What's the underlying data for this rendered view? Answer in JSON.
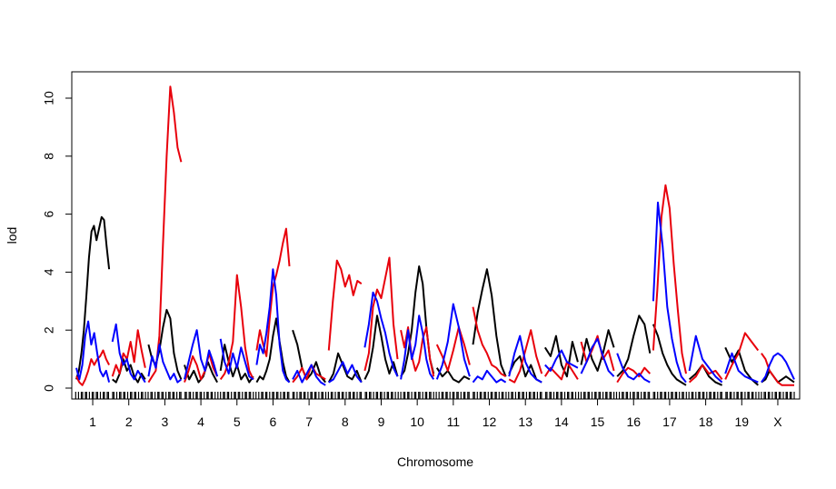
{
  "chart_data": {
    "type": "line",
    "title": "",
    "xlabel": "Chromosome",
    "ylabel": "lod",
    "ylim": [
      0,
      10.8
    ],
    "yticks": [
      0,
      2,
      4,
      6,
      8,
      10
    ],
    "series_colors": [
      "#000000",
      "#e8000b",
      "#0000ff"
    ],
    "chromosomes": [
      {
        "label": "1",
        "black": [
          0.3,
          0.6,
          1.2,
          2.0,
          3.2,
          4.5,
          5.4,
          5.6,
          5.1,
          5.5,
          5.9,
          5.8,
          4.9,
          4.1
        ],
        "red": [
          0.4,
          0.2,
          0.1,
          0.3,
          0.6,
          1.0,
          0.8,
          1.0,
          1.1,
          1.3,
          1.0,
          0.8
        ],
        "blue": [
          0.7,
          0.3,
          0.8,
          1.8,
          2.3,
          1.5,
          1.9,
          1.2,
          0.6,
          0.4,
          0.6,
          0.2
        ]
      },
      {
        "label": "2",
        "black": [
          0.3,
          0.2,
          0.5,
          1.0,
          0.6,
          0.8,
          0.4,
          0.2,
          0.5,
          0.3
        ],
        "red": [
          0.4,
          0.8,
          0.5,
          1.2,
          1.0,
          1.6,
          0.9,
          2.0,
          1.3,
          0.7
        ],
        "blue": [
          1.6,
          2.2,
          1.2,
          0.8,
          1.0,
          0.5,
          0.3,
          0.6,
          0.4,
          0.2
        ]
      },
      {
        "label": "3",
        "black": [
          1.5,
          1.0,
          0.8,
          1.3,
          2.1,
          2.7,
          2.4,
          1.2,
          0.6,
          0.3
        ],
        "red": [
          0.2,
          0.4,
          0.6,
          1.8,
          5.0,
          8.0,
          10.4,
          9.5,
          8.3,
          7.8
        ],
        "blue": [
          0.4,
          1.1,
          0.7,
          1.5,
          0.9,
          0.6,
          0.3,
          0.5,
          0.2,
          0.3
        ]
      },
      {
        "label": "4",
        "black": [
          0.8,
          0.3,
          0.6,
          0.2,
          0.4,
          0.9,
          0.5,
          0.2
        ],
        "red": [
          0.2,
          0.6,
          1.1,
          0.8,
          0.3,
          0.6,
          1.2,
          0.7,
          0.4
        ],
        "blue": [
          0.3,
          0.9,
          1.5,
          2.0,
          1.0,
          0.6,
          1.3,
          0.9,
          0.4
        ]
      },
      {
        "label": "5",
        "black": [
          0.6,
          1.5,
          0.9,
          0.4,
          0.8,
          0.3,
          0.5,
          0.2,
          0.4
        ],
        "red": [
          0.3,
          0.5,
          0.9,
          1.6,
          3.9,
          2.8,
          1.4,
          0.6,
          0.3
        ],
        "blue": [
          1.7,
          0.9,
          0.5,
          1.2,
          0.7,
          1.4,
          0.9,
          0.4,
          0.3
        ]
      },
      {
        "label": "6",
        "black": [
          0.2,
          0.4,
          0.3,
          0.6,
          1.0,
          1.8,
          2.4,
          1.6,
          0.9,
          0.4,
          0.2
        ],
        "red": [
          1.3,
          2.0,
          1.5,
          1.1,
          2.4,
          3.5,
          3.9,
          4.4,
          5.0,
          5.5,
          4.2
        ],
        "blue": [
          0.8,
          1.5,
          1.2,
          1.9,
          2.8,
          4.1,
          3.2,
          1.5,
          0.6,
          0.3,
          0.2
        ]
      },
      {
        "label": "7",
        "black": [
          2.0,
          1.5,
          0.7,
          0.3,
          0.5,
          0.9,
          0.4,
          0.2
        ],
        "red": [
          0.2,
          0.4,
          0.7,
          0.3,
          0.8,
          0.5,
          0.4,
          0.3
        ],
        "blue": [
          0.3,
          0.6,
          0.2,
          0.5,
          0.8,
          0.4,
          0.2,
          0.1
        ]
      },
      {
        "label": "8",
        "black": [
          0.2,
          0.5,
          1.2,
          0.8,
          0.4,
          0.3,
          0.6,
          0.2
        ],
        "red": [
          1.3,
          3.0,
          4.4,
          4.1,
          3.5,
          3.9,
          3.2,
          3.7,
          3.6
        ],
        "blue": [
          0.2,
          0.3,
          0.6,
          0.9,
          0.5,
          0.8,
          0.4,
          0.2
        ]
      },
      {
        "label": "9",
        "black": [
          0.3,
          0.6,
          1.4,
          2.5,
          1.8,
          1.0,
          0.5,
          0.9,
          0.4
        ],
        "red": [
          0.6,
          1.2,
          2.8,
          3.4,
          3.1,
          3.8,
          4.5,
          2.2,
          1.0
        ],
        "blue": [
          1.4,
          2.2,
          3.3,
          3.0,
          2.4,
          1.9,
          1.2,
          0.7,
          0.4
        ]
      },
      {
        "label": "10",
        "black": [
          0.4,
          0.6,
          1.2,
          2.0,
          3.3,
          4.2,
          3.6,
          2.1,
          1.0,
          0.5
        ],
        "red": [
          2.0,
          1.4,
          2.1,
          1.1,
          0.6,
          0.9,
          1.7,
          2.1,
          1.0,
          0.4
        ],
        "blue": [
          0.3,
          1.0,
          2.0,
          1.0,
          1.5,
          2.5,
          1.9,
          1.0,
          0.5,
          0.3
        ]
      },
      {
        "label": "11",
        "black": [
          0.7,
          0.4,
          0.6,
          0.3,
          0.2,
          0.4,
          0.3
        ],
        "red": [
          1.5,
          1.1,
          0.6,
          1.3,
          2.1,
          1.5,
          0.8
        ],
        "blue": [
          0.3,
          0.8,
          1.6,
          2.9,
          2.1,
          1.0,
          0.4
        ]
      },
      {
        "label": "12",
        "black": [
          1.5,
          2.6,
          3.4,
          4.1,
          3.2,
          1.8,
          0.8,
          0.4
        ],
        "red": [
          2.8,
          2.0,
          1.5,
          1.2,
          0.8,
          0.7,
          0.5,
          0.4
        ],
        "blue": [
          0.2,
          0.4,
          0.3,
          0.6,
          0.4,
          0.2,
          0.3,
          0.2
        ]
      },
      {
        "label": "13",
        "black": [
          0.5,
          0.9,
          1.1,
          0.4,
          0.8,
          0.3,
          0.2
        ],
        "red": [
          0.3,
          0.2,
          0.6,
          1.3,
          2.0,
          1.1,
          0.5
        ],
        "blue": [
          0.4,
          1.2,
          1.8,
          0.9,
          0.5,
          0.3,
          0.2
        ]
      },
      {
        "label": "14",
        "black": [
          1.4,
          1.1,
          1.8,
          0.8,
          0.4,
          1.6,
          0.9
        ],
        "red": [
          0.4,
          0.7,
          0.5,
          0.3,
          0.9,
          0.6,
          0.3
        ],
        "blue": [
          0.8,
          0.6,
          1.0,
          1.3,
          0.9,
          0.8,
          0.7
        ]
      },
      {
        "label": "15",
        "black": [
          0.8,
          1.7,
          1.0,
          0.6,
          1.2,
          2.0,
          1.4
        ],
        "red": [
          1.6,
          0.9,
          1.3,
          1.8,
          1.0,
          1.3,
          0.6
        ],
        "blue": [
          0.5,
          0.9,
          1.4,
          1.7,
          1.1,
          0.6,
          0.4
        ]
      },
      {
        "label": "16",
        "black": [
          0.4,
          0.6,
          1.0,
          1.8,
          2.5,
          2.2,
          1.2
        ],
        "red": [
          0.2,
          0.5,
          0.7,
          0.6,
          0.4,
          0.7,
          0.5
        ],
        "blue": [
          1.2,
          0.7,
          0.4,
          0.3,
          0.5,
          0.3,
          0.2
        ]
      },
      {
        "label": "17",
        "black": [
          2.2,
          1.8,
          1.2,
          0.8,
          0.5,
          0.3,
          0.2,
          0.1
        ],
        "red": [
          1.3,
          3.4,
          5.9,
          7.0,
          6.2,
          4.3,
          2.7,
          1.2,
          0.5
        ],
        "blue": [
          3.0,
          6.4,
          4.9,
          2.8,
          1.7,
          0.9,
          0.4,
          0.2
        ]
      },
      {
        "label": "18",
        "black": [
          0.3,
          0.5,
          0.8,
          0.4,
          0.2,
          0.1
        ],
        "red": [
          0.2,
          0.4,
          0.8,
          0.5,
          0.6,
          0.3
        ],
        "blue": [
          0.6,
          1.8,
          1.0,
          0.7,
          0.4,
          0.2
        ]
      },
      {
        "label": "19",
        "black": [
          1.4,
          0.9,
          1.3,
          0.6,
          0.3,
          0.1
        ],
        "red": [
          0.3,
          0.8,
          1.2,
          1.9,
          1.6,
          1.3
        ],
        "blue": [
          0.5,
          1.2,
          0.6,
          0.4,
          0.3,
          0.2
        ]
      },
      {
        "label": "X",
        "black": [
          0.2,
          0.3,
          0.6,
          0.4,
          0.2,
          0.3,
          0.4,
          0.3,
          0.2
        ],
        "red": [
          1.2,
          1.0,
          0.6,
          0.4,
          0.2,
          0.1,
          0.1,
          0.1,
          0.1
        ],
        "blue": [
          0.2,
          0.4,
          0.8,
          1.1,
          1.2,
          1.1,
          0.9,
          0.6,
          0.3
        ]
      }
    ]
  }
}
